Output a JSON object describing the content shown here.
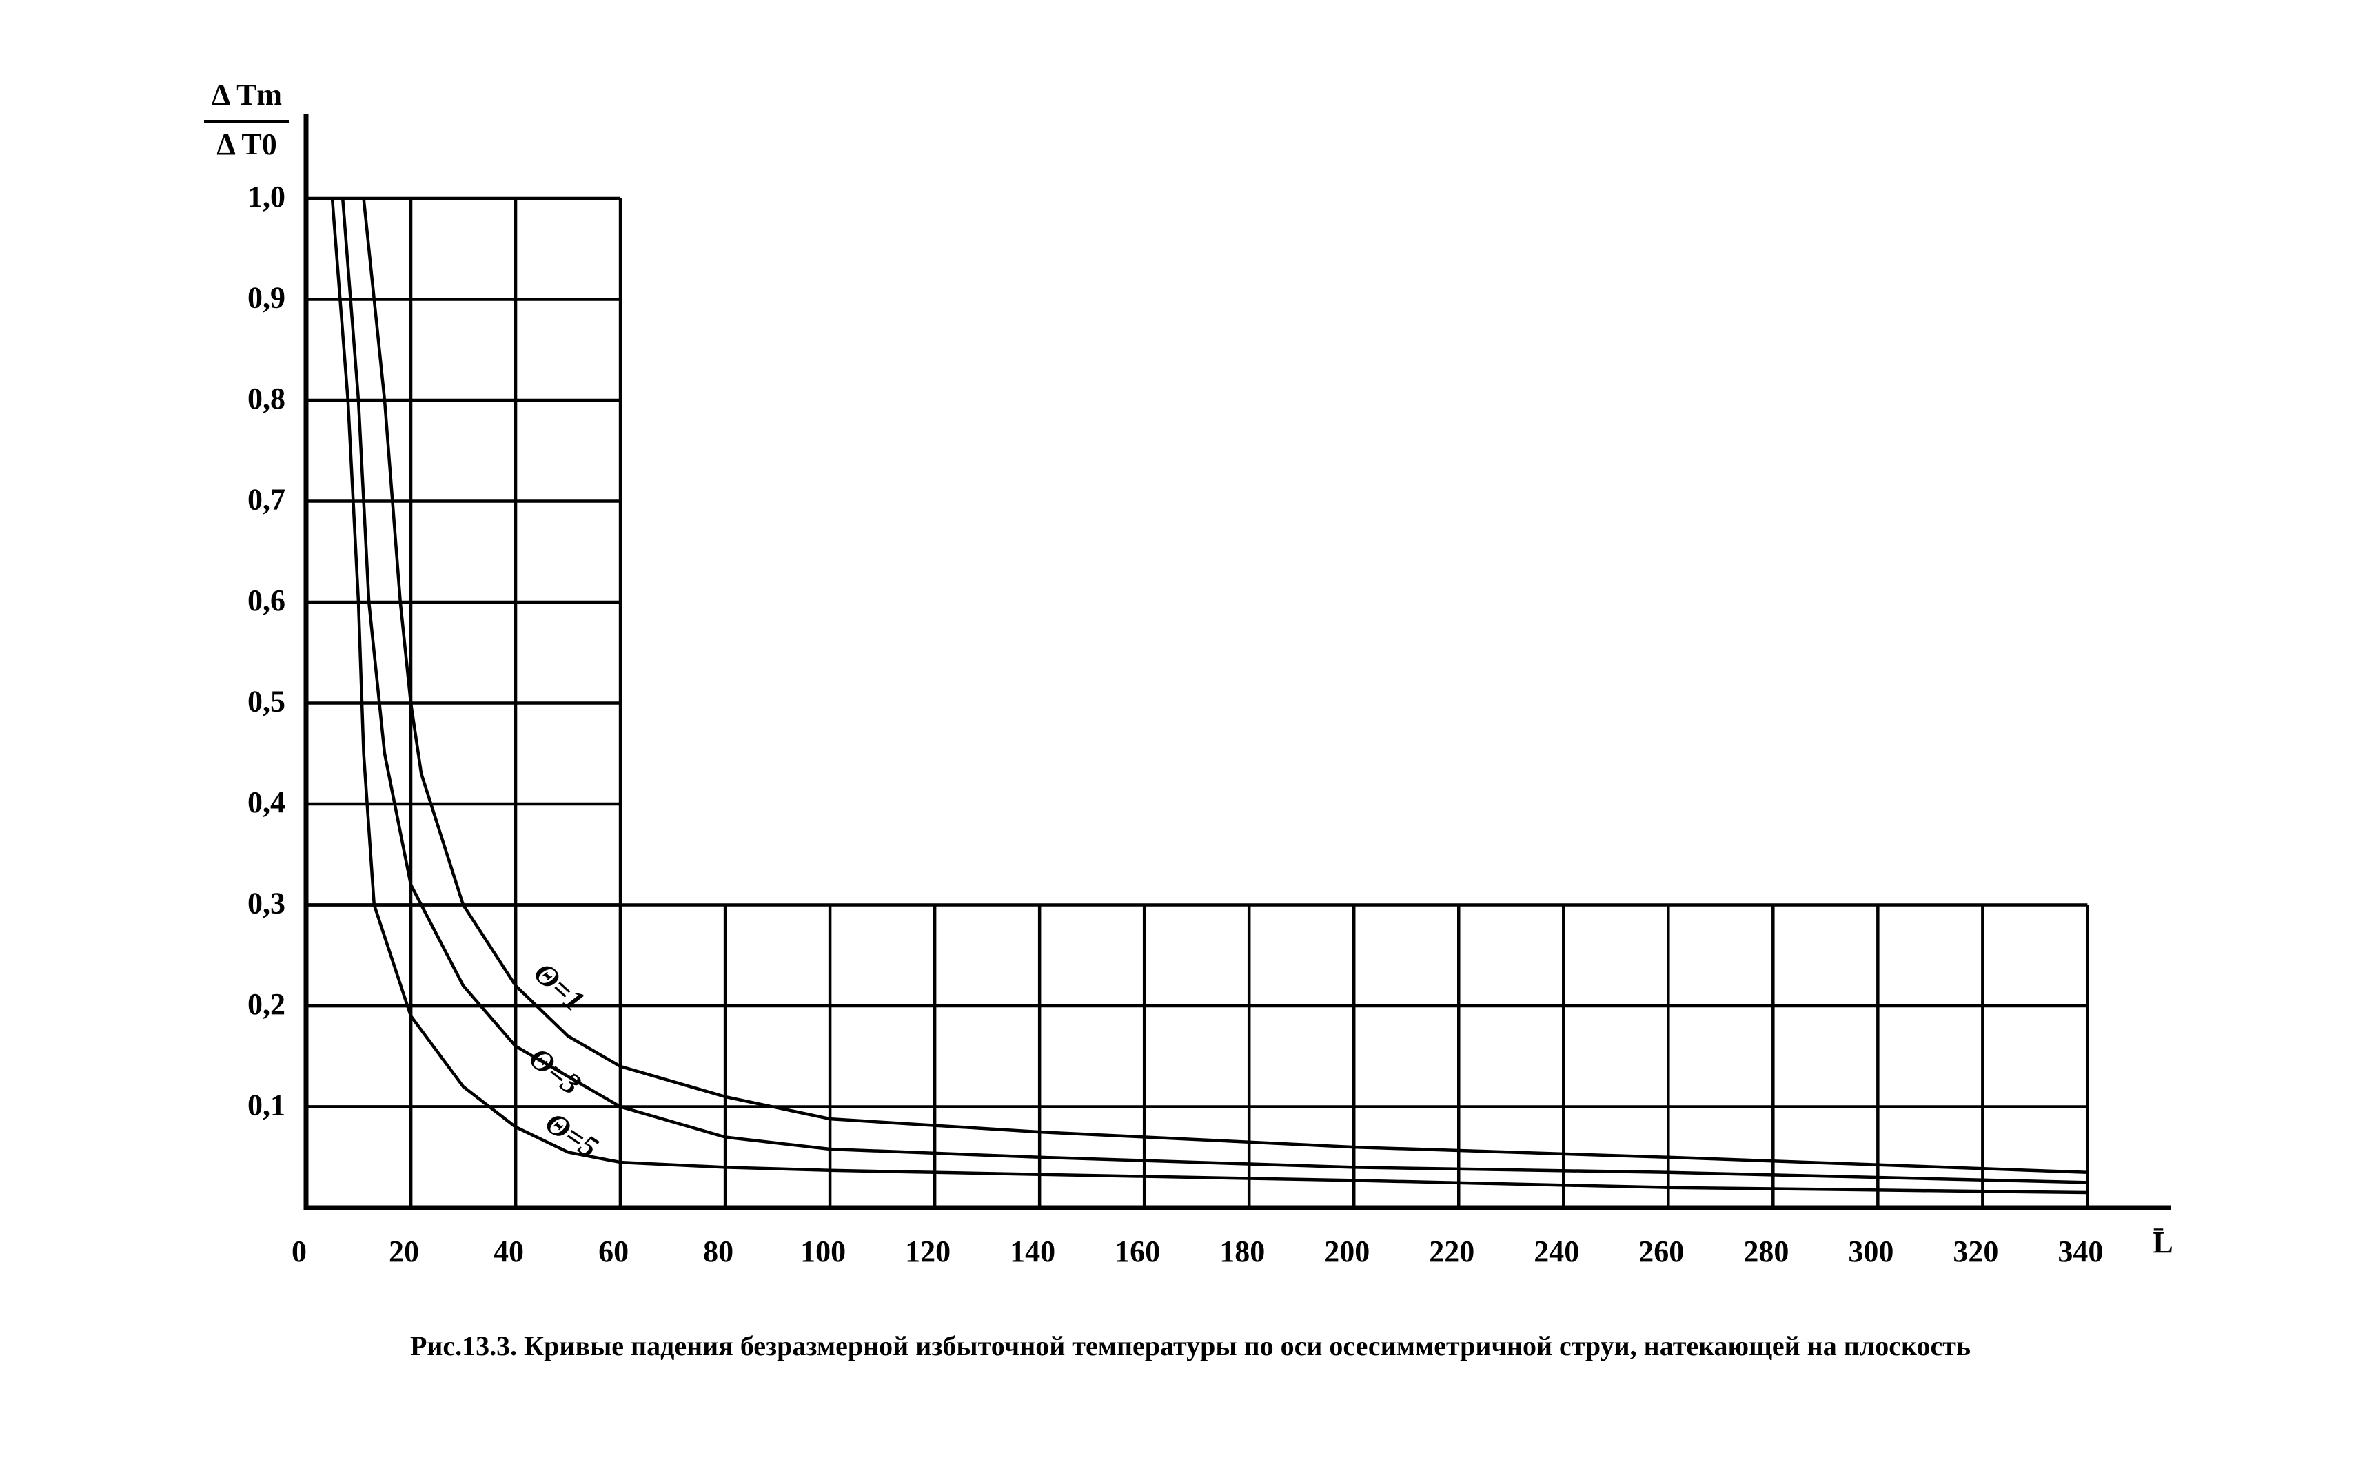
{
  "chart_data": {
    "type": "line",
    "y_label_top": "Δ Tm",
    "y_label_bottom": "Δ T0",
    "x_label": "L̄",
    "caption": "Рис.13.3. Кривые падения безразмерной избыточной температуры по оси осесимметричной струи, натекающей на плоскость",
    "xlim": [
      0,
      356
    ],
    "ylim": [
      0,
      1.084
    ],
    "xticks": [
      0,
      20,
      40,
      60,
      80,
      100,
      120,
      140,
      160,
      180,
      200,
      220,
      240,
      260,
      280,
      300,
      320,
      340
    ],
    "yticks": [
      {
        "value": 0.1,
        "label": "0,1"
      },
      {
        "value": 0.2,
        "label": "0,2"
      },
      {
        "value": 0.3,
        "label": "0,3"
      },
      {
        "value": 0.4,
        "label": "0,4"
      },
      {
        "value": 0.5,
        "label": "0,5"
      },
      {
        "value": 0.6,
        "label": "0,6"
      },
      {
        "value": 0.7,
        "label": "0,7"
      },
      {
        "value": 0.8,
        "label": "0,8"
      },
      {
        "value": 0.9,
        "label": "0,9"
      },
      {
        "value": 1.0,
        "label": "1,0"
      }
    ],
    "grid": true,
    "grid_regions": [
      {
        "xlim": [
          0,
          60
        ],
        "ylim": [
          0,
          1.0
        ]
      },
      {
        "xlim": [
          0,
          340
        ],
        "ylim": [
          0,
          0.3
        ]
      }
    ],
    "series": [
      {
        "name": "Θ=1",
        "color": "#000000",
        "x": [
          11,
          15,
          18,
          20,
          22,
          30,
          40,
          50,
          60,
          80,
          100,
          140,
          200,
          260,
          340
        ],
        "values": [
          1.0,
          0.8,
          0.6,
          0.5,
          0.43,
          0.3,
          0.22,
          0.17,
          0.14,
          0.11,
          0.088,
          0.075,
          0.06,
          0.05,
          0.035
        ]
      },
      {
        "name": "Θ=3",
        "color": "#000000",
        "x": [
          7,
          10,
          12,
          15,
          20,
          30,
          40,
          50,
          60,
          80,
          100,
          140,
          200,
          260,
          340
        ],
        "values": [
          1.0,
          0.8,
          0.6,
          0.45,
          0.32,
          0.22,
          0.16,
          0.13,
          0.1,
          0.07,
          0.058,
          0.05,
          0.04,
          0.035,
          0.025
        ]
      },
      {
        "name": "Θ=5",
        "color": "#000000",
        "x": [
          5,
          8,
          10,
          11,
          13,
          20,
          30,
          40,
          50,
          60,
          80,
          100,
          140,
          200,
          260,
          340
        ],
        "values": [
          1.0,
          0.8,
          0.6,
          0.45,
          0.3,
          0.19,
          0.12,
          0.08,
          0.055,
          0.045,
          0.04,
          0.037,
          0.033,
          0.027,
          0.02,
          0.015
        ]
      }
    ]
  }
}
